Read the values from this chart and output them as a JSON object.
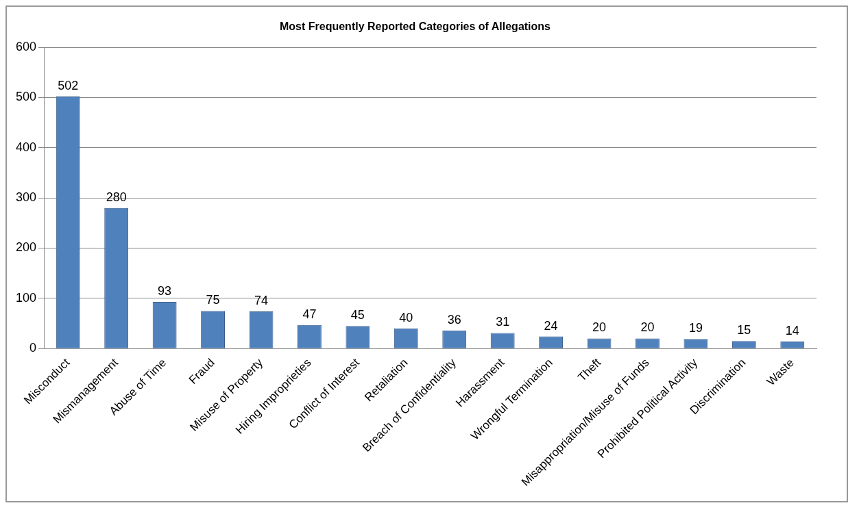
{
  "chart_data": {
    "type": "bar",
    "title": "Most Frequently Reported Categories of Allegations",
    "categories": [
      "Misconduct",
      "Mismanagement",
      "Abuse of Time",
      "Fraud",
      "Misuse of Property",
      "Hiring Improprieties",
      "Conflict of Interest",
      "Retaliation",
      "Breach of Confidentiality",
      "Harassment",
      "Wrongful Termination",
      "Theft",
      "Misappropriation/Misuse of Funds",
      "Prohibited Political Activity",
      "Discrimination",
      "Waste"
    ],
    "values": [
      502,
      280,
      93,
      75,
      74,
      47,
      45,
      40,
      36,
      31,
      24,
      20,
      20,
      19,
      15,
      14
    ],
    "color": "#4f81bd",
    "ylim": [
      0,
      600
    ],
    "yticks": [
      0,
      100,
      200,
      300,
      400,
      500,
      600
    ],
    "grid": "y",
    "data_labels": true
  }
}
